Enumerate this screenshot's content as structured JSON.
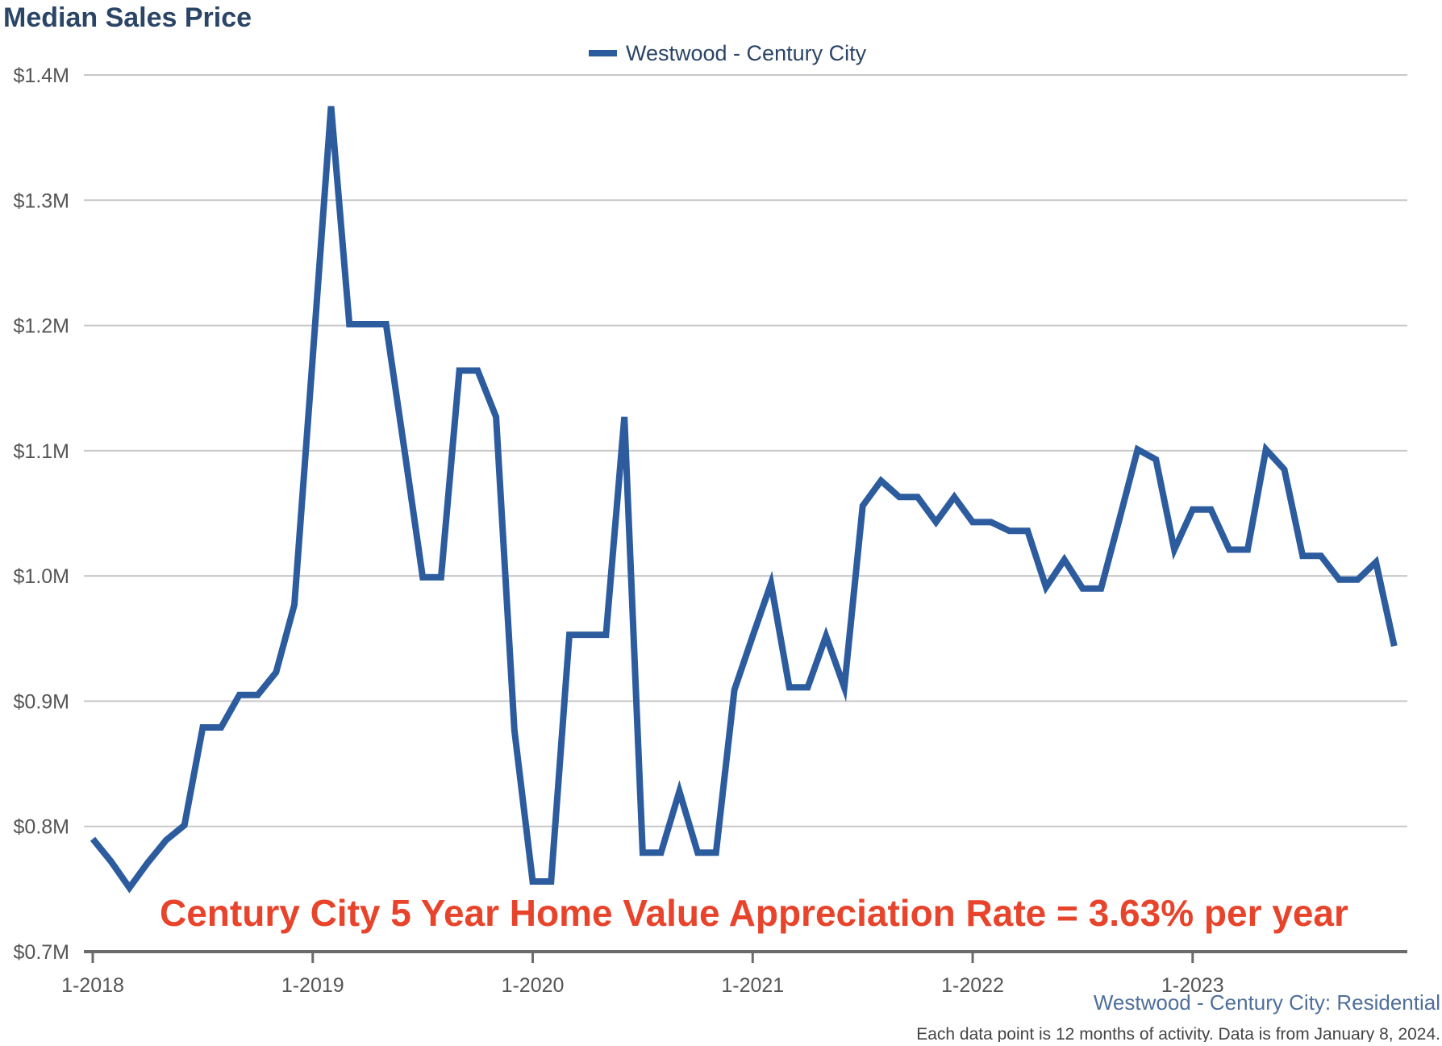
{
  "colors": {
    "series": "#2c5c9e",
    "title": "#2b4566",
    "annotation": "#e8432b",
    "subtitle": "#4f6f9a",
    "grid": "#c8c8c8"
  },
  "chart_data": {
    "type": "line",
    "title": "Median Sales Price",
    "legend": {
      "position": "top-center",
      "entries": [
        "Westwood - Century City"
      ]
    },
    "annotation": "Century City 5 Year Home Value Appreciation Rate = 3.63% per year",
    "subtitle": "Westwood - Century City: Residential",
    "footnote": "Each data point is 12 months of activity. Data is from January 8, 2024.",
    "grid": true,
    "ylim": [
      0.7,
      1.4
    ],
    "y_ticks": [
      {
        "value": 0.7,
        "label": "$0.7M"
      },
      {
        "value": 0.8,
        "label": "$0.8M"
      },
      {
        "value": 0.9,
        "label": "$0.9M"
      },
      {
        "value": 1.0,
        "label": "$1.0M"
      },
      {
        "value": 1.1,
        "label": "$1.1M"
      },
      {
        "value": 1.2,
        "label": "$1.2M"
      },
      {
        "value": 1.3,
        "label": "$1.3M"
      },
      {
        "value": 1.4,
        "label": "$1.4M"
      }
    ],
    "x_ticks": [
      "1-2018",
      "1-2019",
      "1-2020",
      "1-2021",
      "1-2022",
      "1-2023"
    ],
    "x": [
      "1-2018",
      "2-2018",
      "3-2018",
      "4-2018",
      "5-2018",
      "6-2018",
      "7-2018",
      "8-2018",
      "9-2018",
      "10-2018",
      "11-2018",
      "12-2018",
      "1-2019",
      "2-2019",
      "3-2019",
      "4-2019",
      "5-2019",
      "6-2019",
      "7-2019",
      "8-2019",
      "9-2019",
      "10-2019",
      "11-2019",
      "12-2019",
      "1-2020",
      "2-2020",
      "3-2020",
      "4-2020",
      "5-2020",
      "6-2020",
      "7-2020",
      "8-2020",
      "9-2020",
      "10-2020",
      "11-2020",
      "12-2020",
      "1-2021",
      "2-2021",
      "3-2021",
      "4-2021",
      "5-2021",
      "6-2021",
      "7-2021",
      "8-2021",
      "9-2021",
      "10-2021",
      "11-2021",
      "12-2021",
      "1-2022",
      "2-2022",
      "3-2022",
      "4-2022",
      "5-2022",
      "6-2022",
      "7-2022",
      "8-2022",
      "9-2022",
      "10-2022",
      "11-2022",
      "12-2022",
      "1-2023",
      "2-2023",
      "3-2023",
      "4-2023",
      "5-2023",
      "6-2023",
      "7-2023",
      "8-2023",
      "9-2023",
      "10-2023",
      "11-2023",
      "12-2023"
    ],
    "series": [
      {
        "name": "Westwood - Century City",
        "values": [
          0.79,
          0.772,
          0.751,
          0.771,
          0.789,
          0.801,
          0.879,
          0.879,
          0.905,
          0.905,
          0.923,
          0.977,
          1.175,
          1.375,
          1.201,
          1.201,
          1.201,
          1.101,
          0.999,
          0.999,
          1.164,
          1.164,
          1.127,
          0.877,
          0.756,
          0.756,
          0.953,
          0.953,
          0.953,
          1.127,
          0.779,
          0.779,
          0.828,
          0.779,
          0.779,
          0.909,
          0.952,
          0.994,
          0.911,
          0.911,
          0.952,
          0.911,
          1.056,
          1.076,
          1.063,
          1.063,
          1.043,
          1.063,
          1.043,
          1.043,
          1.036,
          1.036,
          0.991,
          1.013,
          0.99,
          0.99,
          1.045,
          1.101,
          1.093,
          1.021,
          1.053,
          1.053,
          1.021,
          1.021,
          1.101,
          1.085,
          1.016,
          1.016,
          0.997,
          0.997,
          1.011,
          0.944
        ]
      }
    ]
  }
}
